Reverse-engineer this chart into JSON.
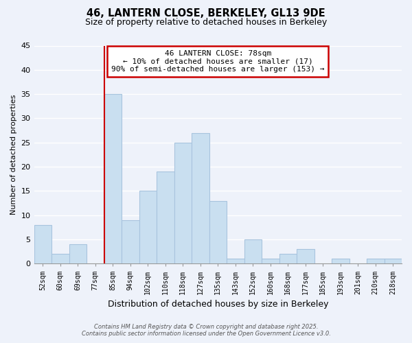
{
  "title": "46, LANTERN CLOSE, BERKELEY, GL13 9DE",
  "subtitle": "Size of property relative to detached houses in Berkeley",
  "xlabel": "Distribution of detached houses by size in Berkeley",
  "ylabel": "Number of detached properties",
  "bin_labels": [
    "52sqm",
    "60sqm",
    "69sqm",
    "77sqm",
    "85sqm",
    "94sqm",
    "102sqm",
    "110sqm",
    "118sqm",
    "127sqm",
    "135sqm",
    "143sqm",
    "152sqm",
    "160sqm",
    "168sqm",
    "177sqm",
    "185sqm",
    "193sqm",
    "201sqm",
    "210sqm",
    "218sqm"
  ],
  "bar_values": [
    8,
    2,
    4,
    0,
    35,
    9,
    15,
    19,
    25,
    27,
    13,
    1,
    5,
    1,
    2,
    3,
    0,
    1,
    0,
    1,
    1
  ],
  "bar_color": "#c9dff0",
  "bar_edge_color": "#a8c4de",
  "vline_x_index": 3.5,
  "vline_color": "#cc0000",
  "annotation_title": "46 LANTERN CLOSE: 78sqm",
  "annotation_line1": "← 10% of detached houses are smaller (17)",
  "annotation_line2": "90% of semi-detached houses are larger (153) →",
  "annotation_box_facecolor": "#ffffff",
  "annotation_box_edgecolor": "#cc0000",
  "background_color": "#eef2fa",
  "grid_color": "#ffffff",
  "footer1": "Contains HM Land Registry data © Crown copyright and database right 2025.",
  "footer2": "Contains public sector information licensed under the Open Government Licence v3.0.",
  "ylim": [
    0,
    45
  ],
  "yticks": [
    0,
    5,
    10,
    15,
    20,
    25,
    30,
    35,
    40,
    45
  ]
}
